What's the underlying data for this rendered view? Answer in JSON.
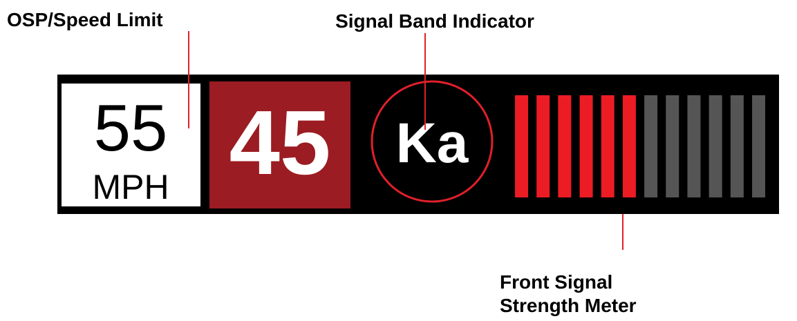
{
  "callouts": {
    "speed_limit": "OSP/Speed Limit",
    "band": "Signal Band Indicator",
    "meter": [
      "Front Signal",
      "Strength Meter"
    ]
  },
  "display": {
    "speed_limit": "55",
    "unit": "MPH",
    "speed": "45",
    "band": "Ka",
    "signal_meter": {
      "active": 6,
      "total": 12
    }
  }
}
